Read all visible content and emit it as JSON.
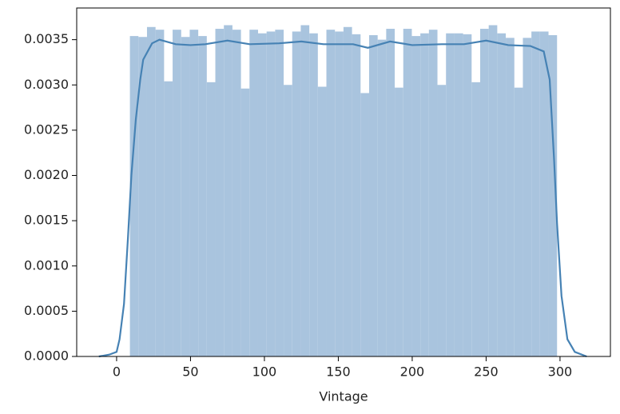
{
  "chart_data": {
    "type": "histogram",
    "xlabel": "Vintage",
    "bins": [
      9,
      14.78,
      20.56,
      26.34,
      32.12,
      37.9,
      43.68,
      49.46,
      55.24,
      61.02,
      66.8,
      72.58,
      78.36,
      84.14,
      89.92,
      95.7,
      101.48,
      107.26,
      113.04,
      118.82,
      124.6,
      130.38,
      136.16,
      141.94,
      147.72,
      153.5,
      159.28,
      165.06,
      170.84,
      176.62,
      182.4,
      188.18,
      193.96,
      199.74,
      205.52,
      211.3,
      217.08,
      222.86,
      228.64,
      234.42,
      240.2,
      245.98,
      251.76,
      257.54,
      263.32,
      269.1,
      274.88,
      280.66,
      286.44,
      292.22,
      298
    ],
    "values": [
      0.00354,
      0.00353,
      0.00364,
      0.00361,
      0.00304,
      0.00361,
      0.00353,
      0.00361,
      0.00354,
      0.00303,
      0.00362,
      0.00366,
      0.00361,
      0.00296,
      0.00361,
      0.00357,
      0.00359,
      0.00361,
      0.003,
      0.00359,
      0.00366,
      0.00357,
      0.00298,
      0.00361,
      0.00359,
      0.00364,
      0.00356,
      0.00291,
      0.00355,
      0.0035,
      0.00362,
      0.00297,
      0.00362,
      0.00354,
      0.00357,
      0.00361,
      0.003,
      0.00357,
      0.00357,
      0.00356,
      0.00303,
      0.00362,
      0.00366,
      0.00357,
      0.00352,
      0.00297,
      0.00352,
      0.00359,
      0.00359,
      0.00355
    ],
    "color": "#a9c4de",
    "kde": {
      "color": "#4682b4",
      "x": [
        -12,
        -5,
        0,
        2,
        5,
        7.6,
        10,
        13,
        16,
        18,
        24,
        29,
        40,
        50,
        60,
        75,
        90,
        110,
        125,
        140,
        160,
        170,
        185,
        200,
        220,
        235,
        250,
        265,
        280,
        289,
        293,
        296,
        298,
        301,
        305,
        310,
        318
      ],
      "y": [
        0,
        2e-05,
        5e-05,
        0.00019,
        0.00058,
        0.00129,
        0.002,
        0.00262,
        0.00306,
        0.00328,
        0.00346,
        0.0035,
        0.00345,
        0.00344,
        0.00345,
        0.00349,
        0.00345,
        0.00346,
        0.00348,
        0.00345,
        0.00345,
        0.00341,
        0.00348,
        0.00344,
        0.00345,
        0.00345,
        0.00349,
        0.00344,
        0.00343,
        0.00337,
        0.00306,
        0.00217,
        0.00147,
        0.00067,
        0.00019,
        5e-05,
        0
      ]
    },
    "xlim": [
      -27,
      334.1
    ],
    "ylim": [
      0,
      0.00385
    ],
    "xticks": [
      0,
      50,
      100,
      150,
      200,
      250,
      300
    ],
    "yticks": [
      {
        "value": 0,
        "label": "0.0000"
      },
      {
        "value": 0.0005,
        "label": "0.0005"
      },
      {
        "value": 0.001,
        "label": "0.0010"
      },
      {
        "value": 0.0015,
        "label": "0.0015"
      },
      {
        "value": 0.002,
        "label": "0.0020"
      },
      {
        "value": 0.0025,
        "label": "0.0025"
      },
      {
        "value": 0.003,
        "label": "0.0030"
      },
      {
        "value": 0.0035,
        "label": "0.0035"
      }
    ]
  }
}
